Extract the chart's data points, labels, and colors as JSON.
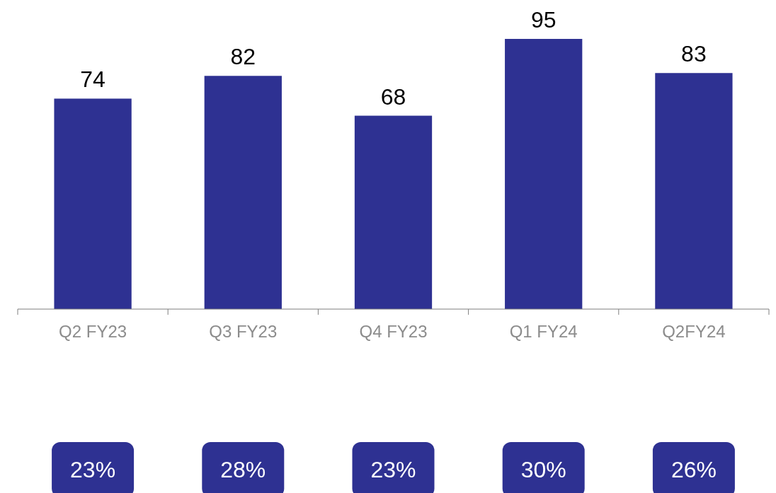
{
  "chart_data": {
    "type": "bar",
    "categories": [
      "Q2 FY23",
      "Q3 FY23",
      "Q4 FY23",
      "Q1 FY24",
      "Q2FY24"
    ],
    "values": [
      74,
      82,
      68,
      95,
      83
    ],
    "color": "#2e3192",
    "data_labels": true,
    "annotations": [
      "23%",
      "28%",
      "23%",
      "30%",
      "26%"
    ]
  }
}
